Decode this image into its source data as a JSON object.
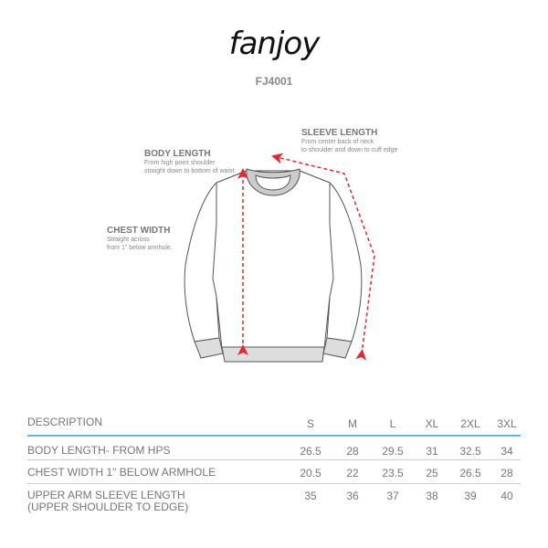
{
  "brand": {
    "logo_text": "fanjoy"
  },
  "style_code": "FJ4001",
  "measurements": [
    {
      "title": "SLEEVE LENGTH",
      "desc_line1": "From center back of neck",
      "desc_line2": "to shoulder and down to cuff edge"
    },
    {
      "title": "BODY LENGTH",
      "desc_line1": "From high point shoulder",
      "desc_line2": "straight down to bottom of waist"
    },
    {
      "title": "CHEST WIDTH",
      "desc_line1": "Straight across",
      "desc_line2": "from 1\" below armhole."
    }
  ],
  "colors": {
    "arrow": "#e8262c",
    "header_rule": "#5bb8e8",
    "text": "#777777"
  },
  "table": {
    "header": {
      "label": "DESCRIPTION",
      "sizes": [
        "S",
        "M",
        "L",
        "XL",
        "2XL",
        "3XL"
      ]
    },
    "rows": [
      {
        "label1": "BODY LENGTH- FROM HPS",
        "label2": "",
        "values": [
          "26.5",
          "28",
          "29.5",
          "31",
          "32.5",
          "34"
        ]
      },
      {
        "label1": "CHEST WIDTH 1\" BELOW  ARMHOLE",
        "label2": "",
        "values": [
          "20.5",
          "22",
          "23.5",
          "25",
          "26.5",
          "28"
        ]
      },
      {
        "label1": "UPPER ARM SLEEVE LENGTH",
        "label2": "(UPPER SHOULDER TO EDGE)",
        "values": [
          "35",
          "36",
          "37",
          "38",
          "39",
          "40"
        ]
      }
    ]
  }
}
